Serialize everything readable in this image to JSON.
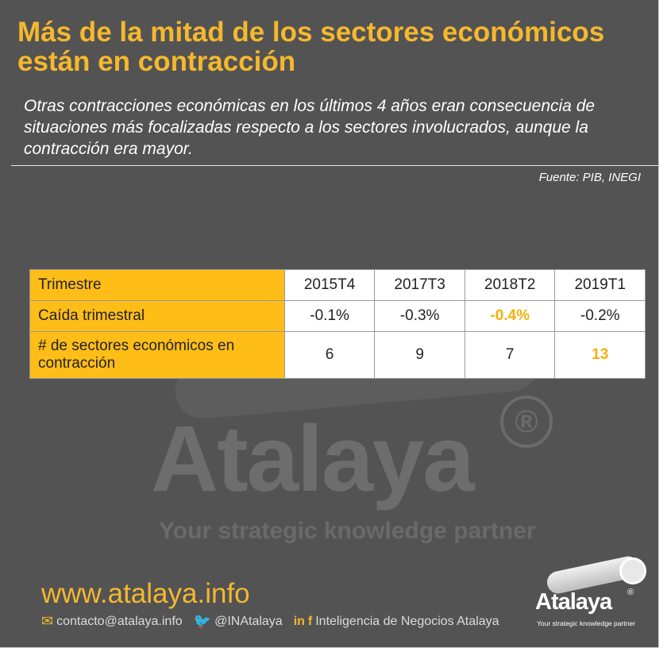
{
  "title": "Más de la mitad de los sectores económicos están en contracción",
  "subtitle": "Otras contracciones económicas en los últimos 4 años eran consecuencia de situaciones más focalizadas respecto a los sectores involucrados, aunque  la contracción era mayor.",
  "source": "Fuente: PIB, INEGI",
  "chart_data": {
    "type": "table",
    "columns": [
      "Trimestre",
      "2015T4",
      "2017T3",
      "2018T2",
      "2019T1"
    ],
    "rows": [
      {
        "label": "Caída trimestral",
        "values": [
          "-0.1%",
          "-0.3%",
          "-0.4%",
          "-0.2%"
        ],
        "highlight_index": 2
      },
      {
        "label": "# de sectores económicos en contracción",
        "values": [
          "6",
          "9",
          "7",
          "13"
        ],
        "highlight_index": 3
      }
    ],
    "colors": {
      "label_bg": "#ffbd17",
      "highlight_text": "#f5b00c"
    }
  },
  "watermark": {
    "brand": "Atalaya",
    "registered": "®",
    "tagline": "Your strategic knowledge partner"
  },
  "footer": {
    "website": "www.atalaya.info",
    "email": "contacto@atalaya.info",
    "twitter": "@INAtalaya",
    "social_name": "Inteligencia de Negocios Atalaya",
    "email_icon": "envelope-icon",
    "twitter_icon": "bird-icon",
    "linkedin_icon": "linkedin-icon",
    "facebook_icon": "facebook-icon"
  },
  "logo": {
    "brand": "Atalaya",
    "registered": "®",
    "tagline": "Your strategic knowledge partner"
  },
  "colors": {
    "background": "#535353",
    "accent": "#f5b82e"
  }
}
